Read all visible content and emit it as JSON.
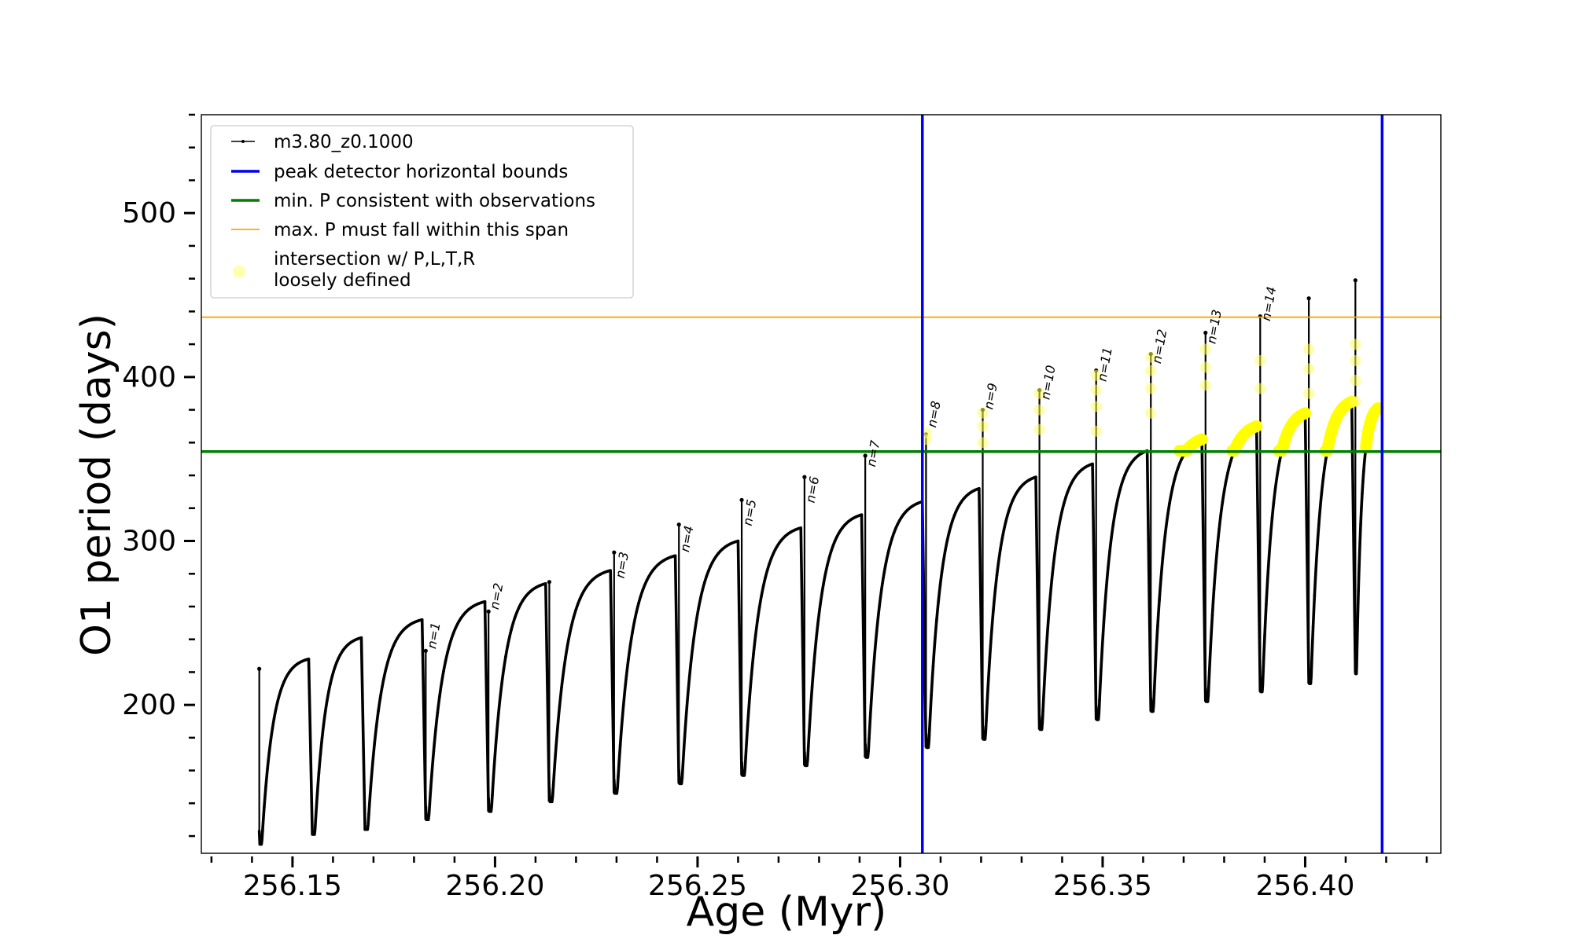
{
  "chart_data": {
    "type": "line",
    "title": "",
    "xlabel": "Age (Myr)",
    "ylabel": "O1 period (days)",
    "xlim": [
      256.1275,
      256.4335
    ],
    "ylim": [
      109.5,
      560
    ],
    "xticks": [
      256.15,
      256.2,
      256.25,
      256.3,
      256.35,
      256.4
    ],
    "xtick_labels": [
      "256.15",
      "256.20",
      "256.25",
      "256.30",
      "256.35",
      "256.40"
    ],
    "yticks": [
      200,
      300,
      400,
      500
    ],
    "ytick_labels": [
      "200",
      "300",
      "400",
      "500"
    ],
    "grid": false,
    "legend_position": "top-left",
    "legend": [
      {
        "label": "m3.80_z0.1000",
        "color": "#000000",
        "style": "line-marker"
      },
      {
        "label": "peak detector horizontal bounds",
        "color": "#0000ee",
        "style": "line"
      },
      {
        "label": "min. P consistent with observations",
        "color": "#007f00",
        "style": "line"
      },
      {
        "label": "max. P must fall within this span",
        "color": "#ffa500",
        "style": "thin-line"
      },
      {
        "label": "intersection w/ P,L,T,R",
        "label2": "loosely defined",
        "color": "#ffff80",
        "style": "circle"
      }
    ],
    "series": [
      {
        "name": "m3.80_z0.1000",
        "color": "#000000",
        "pulses": [
          {
            "x_start": 256.1418,
            "x_end": 256.154,
            "p_min": 115,
            "p_max": 228,
            "spike": 222
          },
          {
            "x_start": 256.1549,
            "x_end": 256.167,
            "p_min": 121,
            "p_max": 241,
            "spike": null
          },
          {
            "x_start": 256.1679,
            "x_end": 256.182,
            "p_min": 124,
            "p_max": 252,
            "spike": null
          },
          {
            "x_start": 256.1829,
            "x_end": 256.1975,
            "p_min": 130,
            "p_max": 263,
            "spike": 233
          },
          {
            "x_start": 256.1984,
            "x_end": 256.2125,
            "p_min": 135,
            "p_max": 274,
            "spike": 257
          },
          {
            "x_start": 256.2134,
            "x_end": 256.2285,
            "p_min": 141,
            "p_max": 282,
            "spike": 275
          },
          {
            "x_start": 256.2294,
            "x_end": 256.2445,
            "p_min": 146,
            "p_max": 291,
            "spike": 293
          },
          {
            "x_start": 256.2454,
            "x_end": 256.26,
            "p_min": 152,
            "p_max": 300,
            "spike": 310
          },
          {
            "x_start": 256.2609,
            "x_end": 256.2755,
            "p_min": 157,
            "p_max": 308,
            "spike": 325
          },
          {
            "x_start": 256.2764,
            "x_end": 256.2905,
            "p_min": 163,
            "p_max": 316,
            "spike": 339
          },
          {
            "x_start": 256.2914,
            "x_end": 256.3055,
            "p_min": 168,
            "p_max": 324,
            "spike": 352
          },
          {
            "x_start": 256.3064,
            "x_end": 256.3195,
            "p_min": 174,
            "p_max": 332,
            "spike": 365
          },
          {
            "x_start": 256.3204,
            "x_end": 256.3335,
            "p_min": 179,
            "p_max": 339,
            "spike": 380
          },
          {
            "x_start": 256.3344,
            "x_end": 256.3475,
            "p_min": 185,
            "p_max": 347,
            "spike": 392
          },
          {
            "x_start": 256.3484,
            "x_end": 256.361,
            "p_min": 191,
            "p_max": 355,
            "spike": 404
          },
          {
            "x_start": 256.3619,
            "x_end": 256.3745,
            "p_min": 196,
            "p_max": 362,
            "spike": 414
          },
          {
            "x_start": 256.3754,
            "x_end": 256.388,
            "p_min": 202,
            "p_max": 370,
            "spike": 427
          },
          {
            "x_start": 256.3889,
            "x_end": 256.4,
            "p_min": 208,
            "p_max": 378,
            "spike": 437
          },
          {
            "x_start": 256.4009,
            "x_end": 256.4115,
            "p_min": 213,
            "p_max": 385,
            "spike": 448
          },
          {
            "x_start": 256.4124,
            "x_end": 256.418,
            "p_min": 219,
            "p_max": 381,
            "spike": 459
          }
        ]
      }
    ],
    "vertical_lines": [
      {
        "name": "peak detector horizontal bounds",
        "x": 256.3055,
        "color": "#0000ee"
      },
      {
        "name": "peak detector horizontal bounds",
        "x": 256.419,
        "color": "#0000ee"
      }
    ],
    "horizontal_lines": [
      {
        "name": "min. P consistent with observations",
        "y": 354.5,
        "color": "#007f00"
      },
      {
        "name": "max. P must fall within this span",
        "y": 436.5,
        "color": "#ffa500"
      }
    ],
    "annotations": [
      {
        "text": "n=1",
        "x": 256.183,
        "y": 232
      },
      {
        "text": "n=2",
        "x": 256.1985,
        "y": 256
      },
      {
        "text": "n=3",
        "x": 256.2295,
        "y": 275
      },
      {
        "text": "n=4",
        "x": 256.2455,
        "y": 291
      },
      {
        "text": "n=5",
        "x": 256.261,
        "y": 307
      },
      {
        "text": "n=6",
        "x": 256.2765,
        "y": 321
      },
      {
        "text": "n=7",
        "x": 256.2915,
        "y": 343
      },
      {
        "text": "n=8",
        "x": 256.3065,
        "y": 367
      },
      {
        "text": "n=9",
        "x": 256.3205,
        "y": 378
      },
      {
        "text": "n=10",
        "x": 256.3345,
        "y": 384
      },
      {
        "text": "n=11",
        "x": 256.3485,
        "y": 395
      },
      {
        "text": "n=12",
        "x": 256.362,
        "y": 406
      },
      {
        "text": "n=13",
        "x": 256.3755,
        "y": 418
      },
      {
        "text": "n=14",
        "x": 256.389,
        "y": 432
      }
    ],
    "highlighted_spans": [
      {
        "x_from": 256.369,
        "x_to": 256.3745,
        "p_from": 355,
        "p_to": 362
      },
      {
        "x_from": 256.382,
        "x_to": 256.388,
        "p_from": 355,
        "p_to": 370
      },
      {
        "x_from": 256.3935,
        "x_to": 256.4,
        "p_from": 355,
        "p_to": 378
      },
      {
        "x_from": 256.405,
        "x_to": 256.4115,
        "p_from": 355,
        "p_to": 385
      },
      {
        "x_from": 256.415,
        "x_to": 256.418,
        "p_from": 355,
        "p_to": 381
      }
    ],
    "spike_intersections": [
      {
        "x": 256.3064,
        "ys": [
          362,
          366
        ]
      },
      {
        "x": 256.3204,
        "ys": [
          360,
          370,
          378
        ]
      },
      {
        "x": 256.3344,
        "ys": [
          368,
          380,
          390
        ]
      },
      {
        "x": 256.3484,
        "ys": [
          367,
          382,
          392,
          401
        ]
      },
      {
        "x": 256.3619,
        "ys": [
          378,
          393,
          404,
          412
        ]
      },
      {
        "x": 256.3754,
        "ys": [
          395,
          406,
          417
        ]
      },
      {
        "x": 256.3889,
        "ys": [
          393,
          410
        ]
      },
      {
        "x": 256.4009,
        "ys": [
          390,
          405,
          417
        ]
      },
      {
        "x": 256.4124,
        "ys": [
          385,
          398,
          410,
          420
        ]
      }
    ]
  }
}
